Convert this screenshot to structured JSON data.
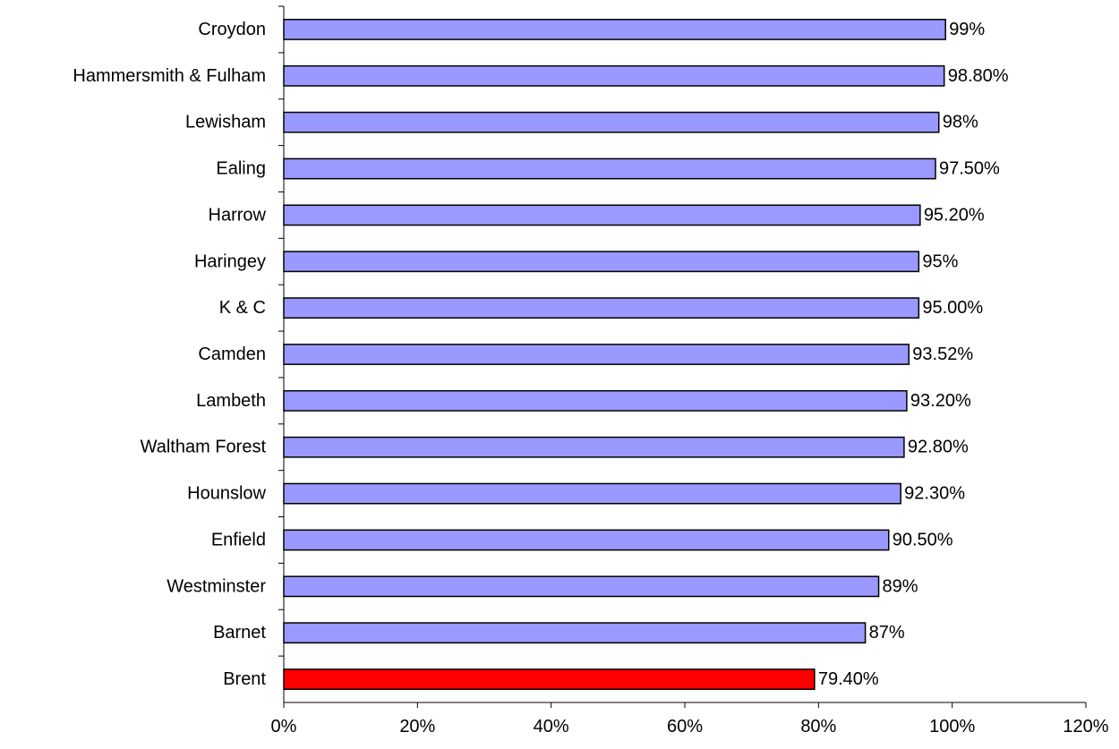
{
  "chart_data": {
    "type": "bar",
    "orientation": "horizontal",
    "title": "",
    "xlabel": "",
    "ylabel": "",
    "categories": [
      "Croydon",
      "Hammersmith & Fulham",
      "Lewisham",
      "Ealing",
      "Harrow",
      "Haringey",
      "K & C",
      "Camden",
      "Lambeth",
      "Waltham Forest",
      "Hounslow",
      "Enfield",
      "Westminster",
      "Barnet",
      "Brent"
    ],
    "values": [
      99,
      98.8,
      98,
      97.5,
      95.2,
      95,
      95.0,
      93.52,
      93.2,
      92.8,
      92.3,
      90.5,
      89,
      87,
      79.4
    ],
    "value_labels": [
      "99%",
      "98.80%",
      "98%",
      "97.50%",
      "95.20%",
      "95%",
      "95.00%",
      "93.52%",
      "93.20%",
      "92.80%",
      "92.30%",
      "90.50%",
      "89%",
      "87%",
      "79.40%"
    ],
    "bar_colors": [
      "#9999ff",
      "#9999ff",
      "#9999ff",
      "#9999ff",
      "#9999ff",
      "#9999ff",
      "#9999ff",
      "#9999ff",
      "#9999ff",
      "#9999ff",
      "#9999ff",
      "#9999ff",
      "#9999ff",
      "#9999ff",
      "#ff0000"
    ],
    "xlim": [
      0,
      120
    ],
    "xticks": [
      0,
      20,
      40,
      60,
      80,
      100,
      120
    ],
    "xtick_labels": [
      "0%",
      "20%",
      "40%",
      "60%",
      "80%",
      "100%",
      "120%"
    ],
    "grid": false,
    "legend": "none"
  }
}
